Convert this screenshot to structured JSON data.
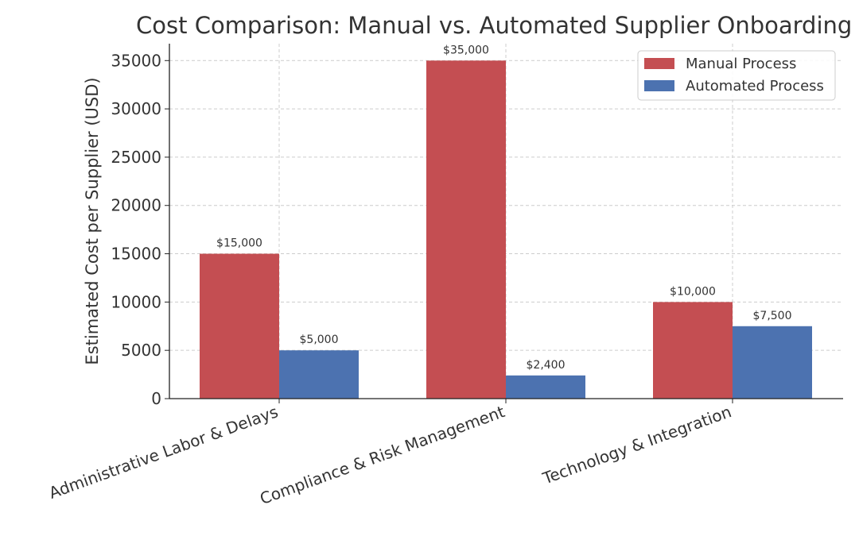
{
  "chart_data": {
    "type": "bar",
    "title": "Cost Comparison: Manual vs. Automated Supplier Onboarding",
    "xlabel": "",
    "ylabel": "Estimated Cost per Supplier (USD)",
    "categories": [
      "Administrative Labor & Delays",
      "Compliance & Risk Management",
      "Technology & Integration"
    ],
    "series": [
      {
        "name": "Manual Process",
        "values": [
          15000,
          35000,
          10000
        ],
        "labels": [
          "$15,000",
          "$35,000",
          "$10,000"
        ],
        "color": "#c44e52"
      },
      {
        "name": "Automated Process",
        "values": [
          5000,
          2400,
          7500
        ],
        "labels": [
          "$5,000",
          "$2,400",
          "$7,500"
        ],
        "color": "#4c72b0"
      }
    ],
    "ylim": [
      0,
      36750
    ],
    "yticks": [
      0,
      5000,
      10000,
      15000,
      20000,
      25000,
      30000,
      35000
    ],
    "grid": true,
    "legend": "top-right"
  }
}
